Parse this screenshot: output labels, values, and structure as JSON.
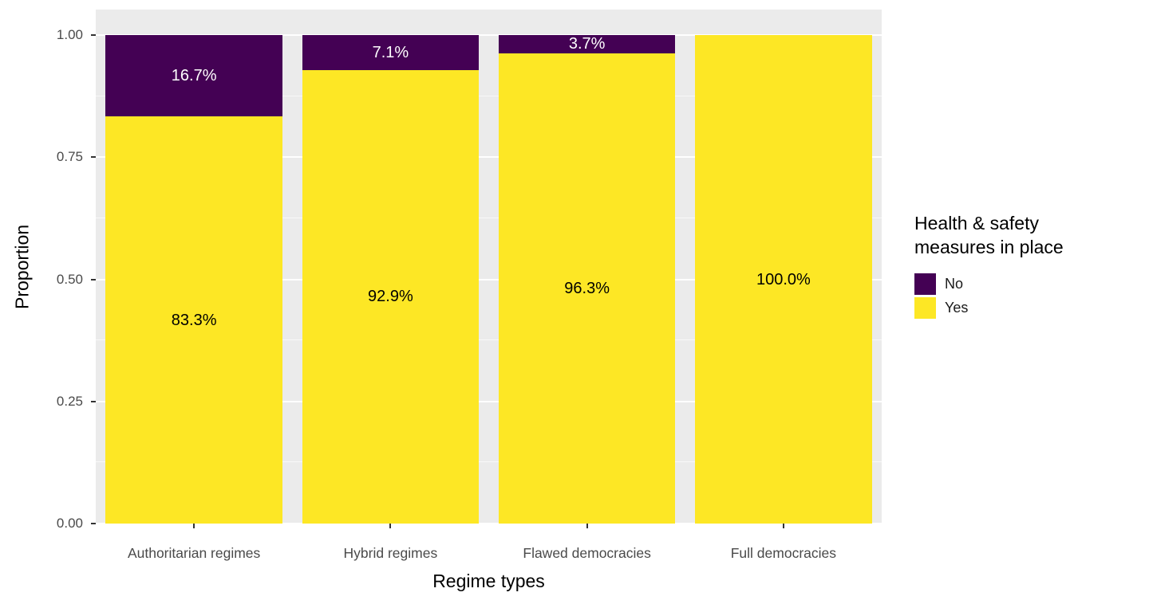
{
  "chart_data": {
    "type": "bar",
    "stacked": true,
    "title": "",
    "xlabel": "Regime types",
    "ylabel": "Proportion",
    "ylim": [
      0,
      1
    ],
    "categories": [
      "Authoritarian regimes",
      "Hybrid regimes",
      "Flawed democracies",
      "Full democracies"
    ],
    "series": [
      {
        "name": "No",
        "color": "#440154",
        "label_color": "#ffffff",
        "values": [
          0.167,
          0.071,
          0.037,
          0
        ],
        "labels": [
          "16.7%",
          "7.1%",
          "3.7%",
          ""
        ]
      },
      {
        "name": "Yes",
        "color": "#FDE725",
        "label_color": "#000000",
        "values": [
          0.833,
          0.929,
          0.963,
          1.0
        ],
        "labels": [
          "83.3%",
          "92.9%",
          "96.3%",
          "100.0%"
        ]
      }
    ],
    "y_major_ticks": [
      {
        "value": 0,
        "label": "0.00"
      },
      {
        "value": 0.25,
        "label": "0.25"
      },
      {
        "value": 0.5,
        "label": "0.50"
      },
      {
        "value": 0.75,
        "label": "0.75"
      },
      {
        "value": 1,
        "label": "1.00"
      }
    ],
    "y_minor_ticks": [
      0.125,
      0.375,
      0.625,
      0.875
    ],
    "legend": {
      "position": "right",
      "title": "Health & safety measures in place",
      "entries": [
        {
          "label": "No",
          "color": "#440154"
        },
        {
          "label": "Yes",
          "color": "#FDE725"
        }
      ]
    },
    "panel_background": "#EBEBEB",
    "gridline_color": "#FFFFFF"
  }
}
